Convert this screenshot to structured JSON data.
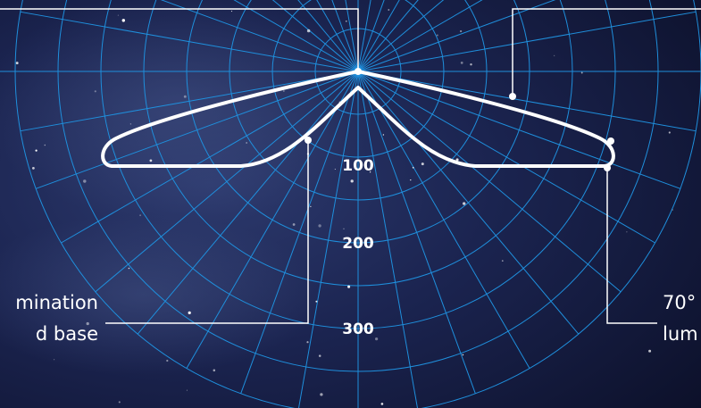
{
  "radial_labels": [
    "100",
    "200",
    "300"
  ],
  "left_note": {
    "lines": [
      "mination",
      "d base"
    ]
  },
  "right_note": {
    "lines": [
      "70°",
      "lum"
    ]
  }
}
